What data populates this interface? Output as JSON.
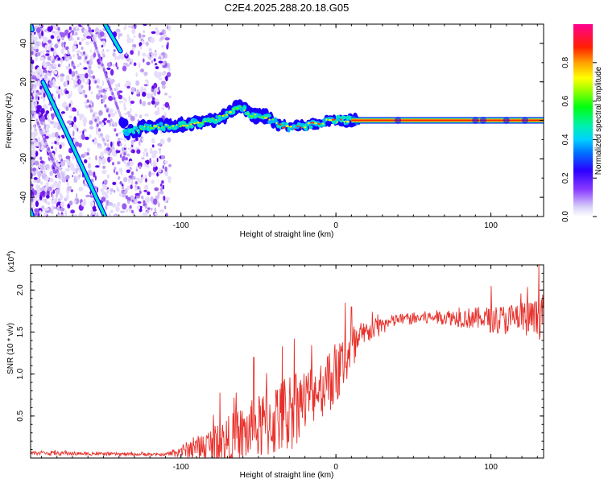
{
  "title": "C2E4.2025.288.20.18.G05",
  "chart_data": [
    {
      "type": "heatmap",
      "name": "spectrogram",
      "xlabel": "Height of straight line (km)",
      "ylabel": "Frequency (Hz)",
      "xlim": [
        -197,
        134
      ],
      "ylim": [
        -50,
        50
      ],
      "xticks": [
        -100,
        0,
        100
      ],
      "yticks": [
        -40,
        -20,
        0,
        20,
        40
      ],
      "colorbar": {
        "label": "Normalized spectral amplitude",
        "range": [
          0,
          1
        ],
        "ticks": [
          "0.0",
          "0.2",
          "0.4",
          "0.6",
          "0.8"
        ],
        "colors": [
          "#ffffff",
          "#b0a0f0",
          "#6a00ff",
          "#0000ff",
          "#00c0ff",
          "#00e0a0",
          "#00ff00",
          "#c0ff00",
          "#ffff00",
          "#ff9000",
          "#ff0000",
          "#ff0090"
        ]
      },
      "main_track": [
        {
          "x": -136,
          "y": -7
        },
        {
          "x": -125,
          "y": -4
        },
        {
          "x": -110,
          "y": -3
        },
        {
          "x": -95,
          "y": -2
        },
        {
          "x": -80,
          "y": 0
        },
        {
          "x": -70,
          "y": 3
        },
        {
          "x": -62,
          "y": 7
        },
        {
          "x": -55,
          "y": 3
        },
        {
          "x": -45,
          "y": 2
        },
        {
          "x": -37,
          "y": -2
        },
        {
          "x": -30,
          "y": -4
        },
        {
          "x": -20,
          "y": -3
        },
        {
          "x": -10,
          "y": -1
        },
        {
          "x": 0,
          "y": 0
        },
        {
          "x": 15,
          "y": 0
        },
        {
          "x": 134,
          "y": 0
        }
      ],
      "diagonal_tracks": [
        {
          "from": {
            "x": -189,
            "y": 20
          },
          "to": {
            "x": -149,
            "y": -50
          }
        },
        {
          "from": {
            "x": -149,
            "y": 50
          },
          "to": {
            "x": -139,
            "y": 36
          }
        },
        {
          "from": {
            "x": -197,
            "y": 50
          },
          "to": {
            "x": -196,
            "y": 47
          }
        },
        {
          "from": {
            "x": -196,
            "y": -50
          },
          "to": {
            "x": -197,
            "y": -47
          }
        }
      ]
    },
    {
      "type": "line",
      "name": "snr",
      "xlabel": "Height of straight line (km)",
      "ylabel": "SNR (10 * v/v)",
      "scale_label": "(x10",
      "scale_exp": "4",
      "xlim": [
        -197,
        134
      ],
      "ylim": [
        0,
        23000
      ],
      "xticks": [
        -100,
        0,
        100
      ],
      "yticks": [
        "0.5",
        "1.0",
        "1.5",
        "2.0"
      ],
      "ytick_values": [
        5000,
        10000,
        15000,
        20000
      ],
      "color": "#e8302a",
      "envelope": [
        {
          "x": -197,
          "base": 600,
          "amp": 250
        },
        {
          "x": -110,
          "base": 400,
          "amp": 150
        },
        {
          "x": -90,
          "base": 1200,
          "amp": 1400
        },
        {
          "x": -70,
          "base": 2000,
          "amp": 3000
        },
        {
          "x": -50,
          "base": 3500,
          "amp": 4000
        },
        {
          "x": -30,
          "base": 5500,
          "amp": 5000
        },
        {
          "x": -15,
          "base": 7500,
          "amp": 3500
        },
        {
          "x": 0,
          "base": 10000,
          "amp": 4000
        },
        {
          "x": 10,
          "base": 12500,
          "amp": 3500
        },
        {
          "x": 20,
          "base": 15000,
          "amp": 1500
        },
        {
          "x": 40,
          "base": 16500,
          "amp": 700
        },
        {
          "x": 70,
          "base": 16800,
          "amp": 900
        },
        {
          "x": 100,
          "base": 16500,
          "amp": 1600
        },
        {
          "x": 134,
          "base": 16500,
          "amp": 2500
        }
      ],
      "highlights": [
        {
          "x": -75,
          "y": 7800
        },
        {
          "x": -53,
          "y": 12000
        },
        {
          "x": -27,
          "y": 14200
        },
        {
          "x": 6,
          "y": 18500
        },
        {
          "x": 10,
          "y": 18000
        },
        {
          "x": 100,
          "y": 20500
        },
        {
          "x": 131,
          "y": 23000
        }
      ]
    }
  ]
}
